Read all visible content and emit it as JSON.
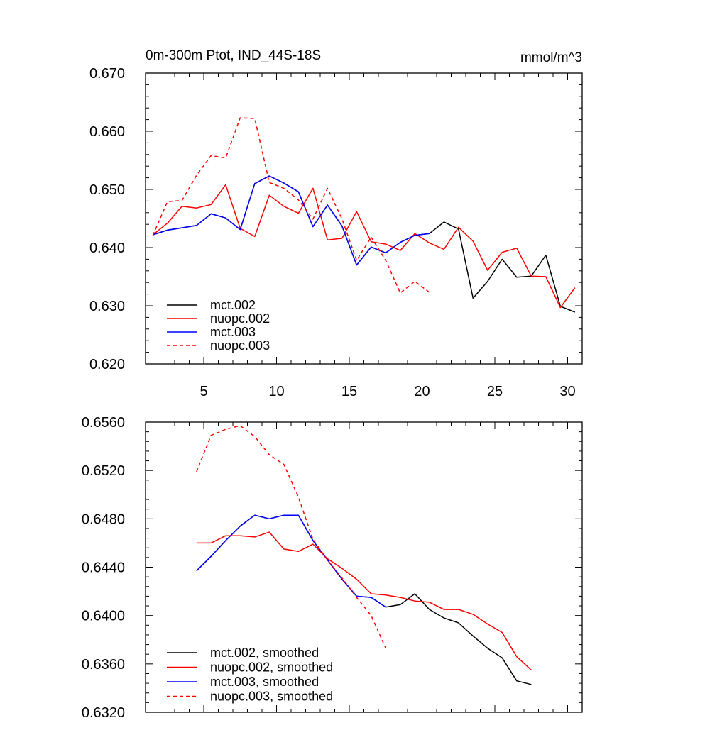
{
  "chart_data": [
    {
      "type": "line",
      "title": "0m-300m Ptot, IND_44S-18S",
      "units": "mmol/m^3",
      "xlabel": "",
      "ylabel": "",
      "xlim": [
        1,
        31
      ],
      "ylim": [
        0.62,
        0.67
      ],
      "xticks": [
        5,
        10,
        15,
        20,
        25,
        30
      ],
      "xtick_labels": [
        "5",
        "10",
        "15",
        "20",
        "25",
        "30"
      ],
      "yticks": [
        0.62,
        0.63,
        0.64,
        0.65,
        0.66,
        0.67
      ],
      "ytick_labels": [
        "0.620",
        "0.630",
        "0.640",
        "0.650",
        "0.660",
        "0.670"
      ],
      "legend_position": "bottom-left",
      "series": [
        {
          "name": "mct.002",
          "color": "#000000",
          "dash": "solid",
          "x": [
            1.5,
            2.5,
            3.5,
            4.5,
            5.5,
            6.5,
            7.5,
            8.5,
            9.5,
            10.5,
            11.5,
            12.5,
            13.5,
            14.5,
            15.5,
            16.5,
            17.5,
            18.5,
            19.5,
            20.5,
            21.5,
            22.5,
            23.5,
            24.5,
            25.5,
            26.5,
            27.5,
            28.5,
            29.5,
            30.5
          ],
          "values": [
            0.6422,
            0.643,
            0.6434,
            0.6438,
            0.6458,
            0.6451,
            0.6431,
            0.651,
            0.6523,
            0.6511,
            0.6496,
            0.6436,
            0.6473,
            0.6437,
            0.637,
            0.6401,
            0.6391,
            0.6409,
            0.6421,
            0.6424,
            0.6444,
            0.6432,
            0.6313,
            0.6342,
            0.638,
            0.6349,
            0.6351,
            0.6387,
            0.6299,
            0.6289
          ]
        },
        {
          "name": "nuopc.002",
          "color": "#ff0000",
          "dash": "solid",
          "x": [
            1.5,
            2.5,
            3.5,
            4.5,
            5.5,
            6.5,
            7.5,
            8.5,
            9.5,
            10.5,
            11.5,
            12.5,
            13.5,
            14.5,
            15.5,
            16.5,
            17.5,
            18.5,
            19.5,
            20.5,
            21.5,
            22.5,
            23.5,
            24.5,
            25.5,
            26.5,
            27.5,
            28.5,
            29.5,
            30.5
          ],
          "values": [
            0.6422,
            0.6442,
            0.6471,
            0.6468,
            0.6474,
            0.6508,
            0.6433,
            0.6419,
            0.649,
            0.6471,
            0.6459,
            0.6502,
            0.6413,
            0.6416,
            0.6462,
            0.641,
            0.6406,
            0.6395,
            0.6424,
            0.6408,
            0.6397,
            0.6435,
            0.6411,
            0.6361,
            0.6392,
            0.6399,
            0.6351,
            0.635,
            0.6297,
            0.6331
          ]
        },
        {
          "name": "mct.003",
          "color": "#0000ff",
          "dash": "solid",
          "x": [
            1.5,
            2.5,
            3.5,
            4.5,
            5.5,
            6.5,
            7.5,
            8.5,
            9.5,
            10.5,
            11.5,
            12.5,
            13.5,
            14.5,
            15.5,
            16.5,
            17.5,
            18.5,
            19.5,
            20.5
          ],
          "values": [
            0.6422,
            0.643,
            0.6434,
            0.6438,
            0.6458,
            0.6451,
            0.6431,
            0.651,
            0.6523,
            0.6511,
            0.6496,
            0.6436,
            0.6473,
            0.6437,
            0.637,
            0.6401,
            0.6391,
            0.6409,
            0.6421,
            0.6424
          ]
        },
        {
          "name": "nuopc.003",
          "color": "#ff0000",
          "dash": "dashed",
          "x": [
            1.5,
            2.5,
            3.5,
            4.5,
            5.5,
            6.5,
            7.5,
            8.5,
            9.5,
            10.5,
            11.5,
            12.5,
            13.5,
            14.5,
            15.5,
            16.5,
            17.5,
            18.5,
            19.5,
            20.5
          ],
          "values": [
            0.6421,
            0.6479,
            0.6481,
            0.6524,
            0.6558,
            0.6554,
            0.6623,
            0.6622,
            0.6512,
            0.6502,
            0.6482,
            0.6449,
            0.6502,
            0.6449,
            0.6378,
            0.6418,
            0.6378,
            0.6322,
            0.6342,
            0.6323
          ]
        }
      ]
    },
    {
      "type": "line",
      "title": "",
      "xlabel": "",
      "ylabel": "",
      "xlim": [
        1,
        31
      ],
      "ylim": [
        0.632,
        0.656
      ],
      "xticks": [
        5,
        10,
        15,
        20,
        25,
        30
      ],
      "yticks": [
        0.632,
        0.636,
        0.64,
        0.644,
        0.648,
        0.652,
        0.656
      ],
      "ytick_labels": [
        "0.6320",
        "0.6360",
        "0.6400",
        "0.6440",
        "0.6480",
        "0.6520",
        "0.6560"
      ],
      "legend_position": "bottom-left",
      "series": [
        {
          "name": "mct.002, smoothed",
          "color": "#000000",
          "dash": "solid",
          "x": [
            4.5,
            5.5,
            6.5,
            7.5,
            8.5,
            9.5,
            10.5,
            11.5,
            12.5,
            13.5,
            14.5,
            15.5,
            16.5,
            17.5,
            18.5,
            19.5,
            20.5,
            21.5,
            22.5,
            23.5,
            24.5,
            25.5,
            26.5,
            27.5
          ],
          "values": [
            0.6437,
            0.6449,
            0.6462,
            0.6474,
            0.6483,
            0.648,
            0.6483,
            0.6483,
            0.6462,
            0.6446,
            0.643,
            0.6416,
            0.6415,
            0.6407,
            0.6409,
            0.6418,
            0.6405,
            0.6398,
            0.6394,
            0.6383,
            0.6373,
            0.6365,
            0.6346,
            0.6343
          ]
        },
        {
          "name": "nuopc.002, smoothed",
          "color": "#ff0000",
          "dash": "solid",
          "x": [
            4.5,
            5.5,
            6.5,
            7.5,
            8.5,
            9.5,
            10.5,
            11.5,
            12.5,
            13.5,
            14.5,
            15.5,
            16.5,
            17.5,
            18.5,
            19.5,
            20.5,
            21.5,
            22.5,
            23.5,
            24.5,
            25.5,
            26.5,
            27.5
          ],
          "values": [
            0.646,
            0.646,
            0.6466,
            0.6466,
            0.6465,
            0.6469,
            0.6455,
            0.6453,
            0.6459,
            0.6447,
            0.6439,
            0.643,
            0.6418,
            0.6417,
            0.6415,
            0.6412,
            0.6411,
            0.6405,
            0.6405,
            0.6401,
            0.6393,
            0.6386,
            0.6366,
            0.6355
          ]
        },
        {
          "name": "mct.003, smoothed",
          "color": "#0000ff",
          "dash": "solid",
          "x": [
            4.5,
            5.5,
            6.5,
            7.5,
            8.5,
            9.5,
            10.5,
            11.5,
            12.5,
            13.5,
            14.5,
            15.5,
            16.5,
            17.5
          ],
          "values": [
            0.6437,
            0.6449,
            0.6462,
            0.6474,
            0.6483,
            0.648,
            0.6483,
            0.6483,
            0.6462,
            0.6446,
            0.643,
            0.6416,
            0.6415,
            0.6407
          ]
        },
        {
          "name": "nuopc.003, smoothed",
          "color": "#ff0000",
          "dash": "dashed",
          "x": [
            4.5,
            5.5,
            6.5,
            7.5,
            8.5,
            9.5,
            10.5,
            11.5,
            12.5,
            13.5,
            14.5,
            15.5,
            16.5,
            17.5
          ],
          "values": [
            0.6519,
            0.6549,
            0.6554,
            0.6557,
            0.6548,
            0.6533,
            0.6525,
            0.6498,
            0.6463,
            0.6446,
            0.6431,
            0.6415,
            0.64,
            0.6373
          ]
        }
      ]
    }
  ]
}
